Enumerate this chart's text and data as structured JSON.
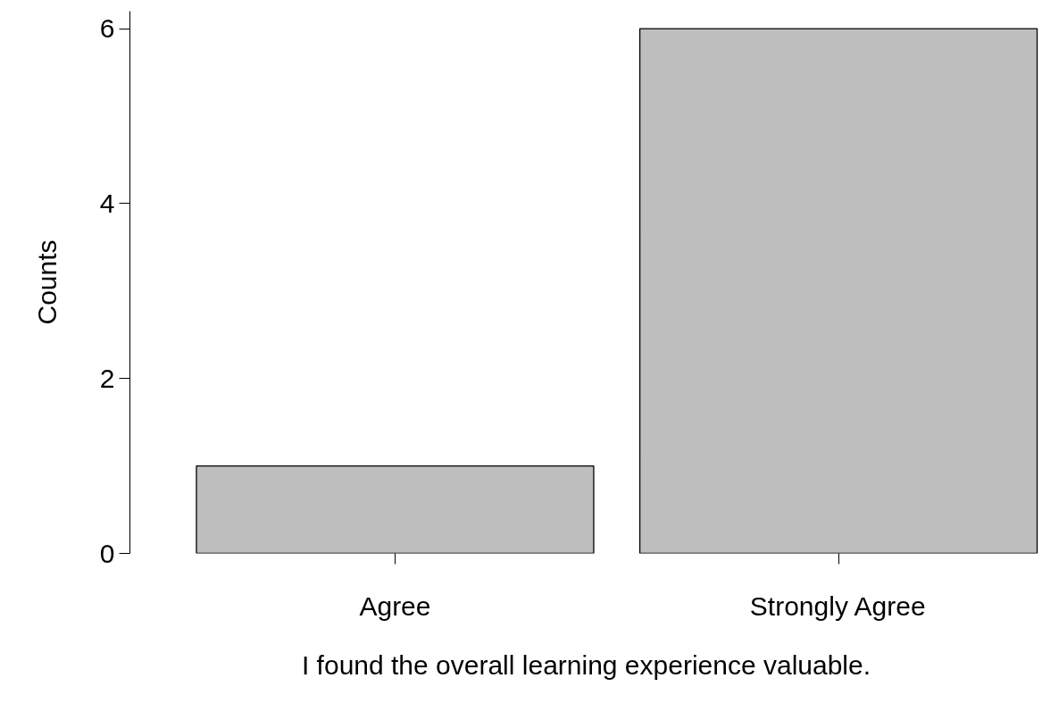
{
  "chart_data": {
    "type": "bar",
    "xlabel": "I found the overall learning experience valuable.",
    "ylabel": "Counts",
    "categories": [
      "Agree",
      "Strongly Agree"
    ],
    "values": [
      1,
      6
    ],
    "color": "#bebebe",
    "ylim": [
      0,
      6.2
    ],
    "yticks": [
      0,
      2,
      4,
      6
    ],
    "grid": false
  }
}
